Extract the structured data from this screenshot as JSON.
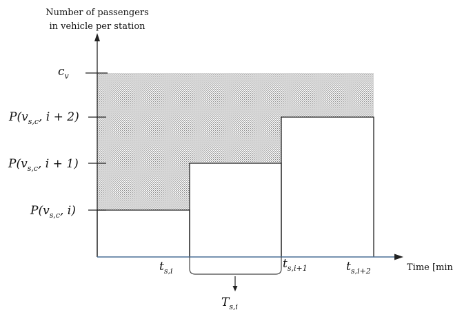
{
  "diagram": {
    "y_axis_label_line1": "Number of passengers",
    "y_axis_label_line2": "in vehicle per station",
    "x_axis_label": "Time [min]",
    "y_ticks": {
      "capacity": {
        "main": "c",
        "sub": "v"
      },
      "p_i2": {
        "prefix": "P(v",
        "sub": "s,c",
        "suffix": ", i + 2)"
      },
      "p_i1": {
        "prefix": "P(v",
        "sub": "s,c",
        "suffix": ", i + 1)"
      },
      "p_i": {
        "prefix": "P(v",
        "sub": "s,c",
        "suffix": ", i)"
      }
    },
    "x_ticks": {
      "t_i": {
        "main": "t",
        "sub": "s,i"
      },
      "t_i1": {
        "main": "t",
        "sub": "s,i+1"
      },
      "t_i2": {
        "main": "t",
        "sub": "s,i+2"
      }
    },
    "interval_label": {
      "main": "T",
      "sub": "s,i"
    },
    "colors": {
      "axis": "#222222",
      "baseline": "#4a6f95",
      "shading": "#bdbdbd"
    }
  }
}
